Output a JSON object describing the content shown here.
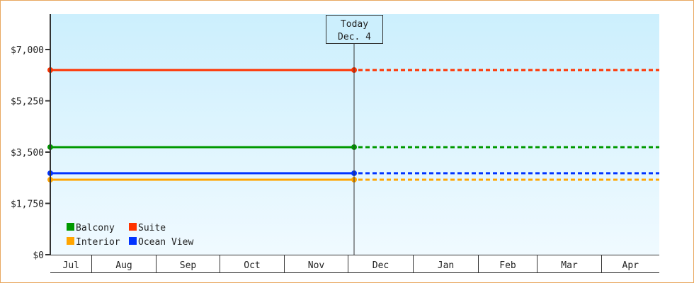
{
  "chart_data": {
    "type": "line",
    "title": "",
    "xlabel": "",
    "ylabel": "",
    "ylim": [
      0,
      8200
    ],
    "y_ticks": [
      0,
      1750,
      3500,
      5250,
      7000
    ],
    "y_tick_labels": [
      "$0",
      "$1,750",
      "$3,500",
      "$5,250",
      "$7,000"
    ],
    "x_tick_labels": [
      "Jul",
      "Aug",
      "Sep",
      "Oct",
      "Nov",
      "Dec",
      "Jan",
      "Feb",
      "Mar",
      "Apr"
    ],
    "grid": false,
    "legend_position": "bottom-left",
    "today_marker": {
      "line1": "Today",
      "line2": "Dec. 4"
    },
    "series": [
      {
        "name": "Balcony",
        "color": "#009900",
        "value": 3670,
        "style": "solid until today, dotted after"
      },
      {
        "name": "Suite",
        "color": "#ff3300",
        "value": 6300,
        "style": "solid until today, dotted after"
      },
      {
        "name": "Interior",
        "color": "#ffa500",
        "value": 2560,
        "style": "solid until today, dotted after"
      },
      {
        "name": "Ocean View",
        "color": "#0033ff",
        "value": 2780,
        "style": "solid until today, dotted after"
      }
    ],
    "background_gradient": [
      "#cceffd",
      "#f0faff"
    ]
  }
}
